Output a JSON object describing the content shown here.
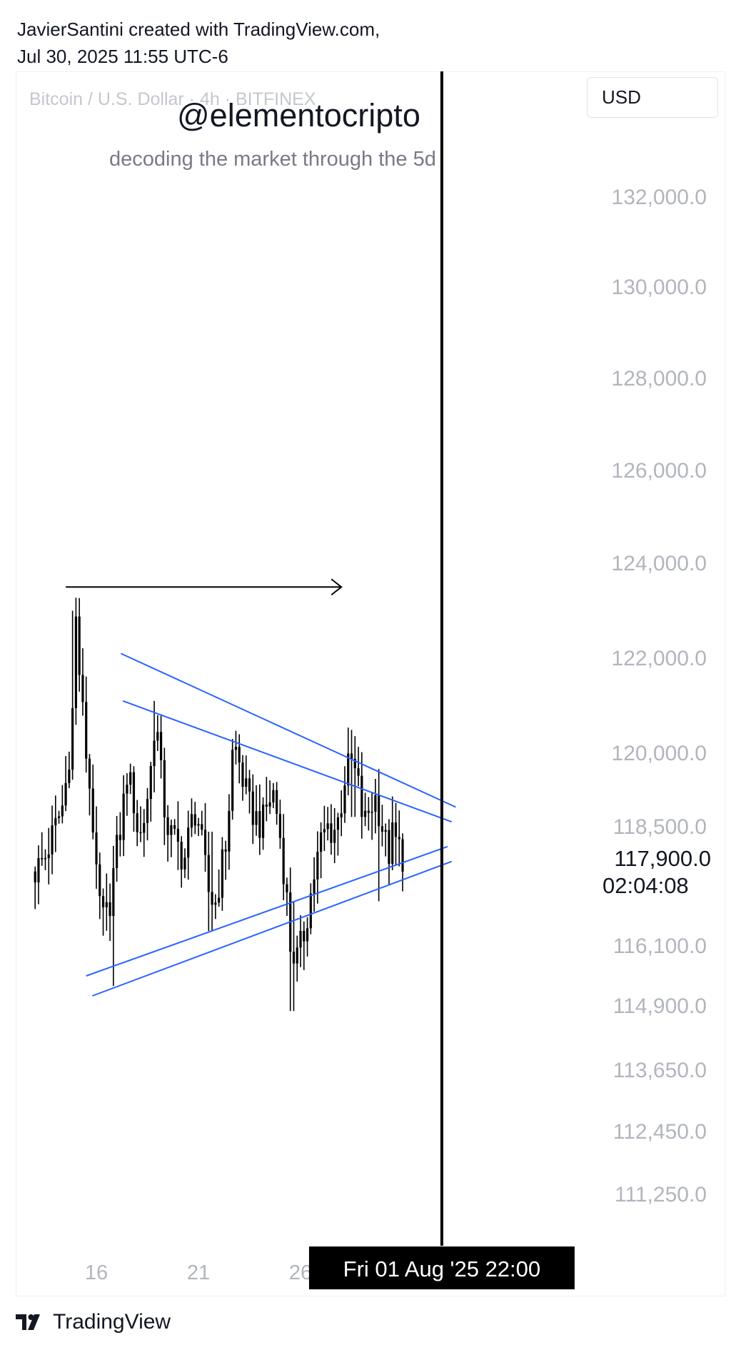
{
  "header": {
    "line1": "JavierSantini created with TradingView.com,",
    "line2": "Jul 30, 2025 11:55 UTC-6"
  },
  "watermark": {
    "symbol_line": "Bitcoin / U.S. Dollar · 4h · BITFINEX",
    "handle": "@elementocripto",
    "tagline": "decoding the market through the 5d"
  },
  "currency": "USD",
  "footer": {
    "brand": "TradingView",
    "logo_icon": "tradingview-logo-icon"
  },
  "colors": {
    "trendline": "#2962ff",
    "candle": "#000000",
    "axis_text": "#b2b5be",
    "crosshair_label_bg": "#000000"
  },
  "chart_data": {
    "type": "candlestick",
    "symbol": "Bitcoin / U.S. Dollar",
    "interval": "4h",
    "exchange": "BITFINEX",
    "y_axis": {
      "scale": "log",
      "ticks": [
        "132,000.0",
        "130,000.0",
        "128,000.0",
        "126,000.0",
        "124,000.0",
        "122,000.0",
        "120,000.0",
        "118,500.0",
        "116,100.0",
        "114,900.0",
        "113,650.0",
        "112,450.0",
        "111,250.0"
      ],
      "tick_values": [
        132000,
        130000,
        128000,
        126000,
        124000,
        122000,
        120000,
        118500,
        116100,
        114900,
        113650,
        112450,
        111250
      ]
    },
    "x_axis": {
      "ticks": [
        "16",
        "21",
        "26"
      ],
      "tick_days": [
        16,
        21,
        26
      ]
    },
    "last_price": {
      "label": "117,900.0",
      "value": 117900,
      "countdown": "02:04:08"
    },
    "crosshair": {
      "label": "Fri 01 Aug '25   22:00",
      "day": 32.92
    },
    "close_path": [
      [
        13.0,
        117600
      ],
      [
        13.5,
        117900
      ],
      [
        14.0,
        118500
      ],
      [
        14.4,
        119000
      ],
      [
        14.8,
        120500
      ],
      [
        15.0,
        122800
      ],
      [
        15.2,
        121500
      ],
      [
        15.5,
        120000
      ],
      [
        15.8,
        118800
      ],
      [
        16.0,
        117400
      ],
      [
        16.3,
        116600
      ],
      [
        16.6,
        116800
      ],
      [
        16.9,
        117800
      ],
      [
        17.2,
        118500
      ],
      [
        17.5,
        119600
      ],
      [
        17.8,
        119100
      ],
      [
        18.1,
        118200
      ],
      [
        18.4,
        118800
      ],
      [
        18.7,
        119800
      ],
      [
        18.9,
        120900
      ],
      [
        19.1,
        119800
      ],
      [
        19.4,
        118600
      ],
      [
        19.7,
        118300
      ],
      [
        20.0,
        118100
      ],
      [
        20.3,
        117800
      ],
      [
        20.6,
        118500
      ],
      [
        20.9,
        118900
      ],
      [
        21.2,
        118000
      ],
      [
        21.5,
        117200
      ],
      [
        21.8,
        116900
      ],
      [
        22.1,
        117600
      ],
      [
        22.4,
        118300
      ],
      [
        22.7,
        120200
      ],
      [
        22.9,
        120000
      ],
      [
        23.2,
        119400
      ],
      [
        23.5,
        118900
      ],
      [
        23.8,
        118700
      ],
      [
        24.1,
        118500
      ],
      [
        24.4,
        119000
      ],
      [
        24.7,
        119200
      ],
      [
        25.0,
        118300
      ],
      [
        25.3,
        117200
      ],
      [
        25.5,
        116100
      ],
      [
        25.8,
        115800
      ],
      [
        26.1,
        116200
      ],
      [
        26.4,
        116900
      ],
      [
        26.7,
        117600
      ],
      [
        27.0,
        118200
      ],
      [
        27.3,
        118500
      ],
      [
        27.6,
        118400
      ],
      [
        27.9,
        118700
      ],
      [
        28.2,
        119600
      ],
      [
        28.5,
        119800
      ],
      [
        28.8,
        119400
      ],
      [
        29.1,
        118500
      ],
      [
        29.4,
        118900
      ],
      [
        29.7,
        119100
      ],
      [
        30.0,
        118500
      ],
      [
        30.3,
        117900
      ],
      [
        30.5,
        118300
      ],
      [
        30.8,
        118100
      ],
      [
        31.0,
        117900
      ]
    ],
    "extremes": [
      {
        "day": 14.9,
        "high": 123000,
        "low": 120800
      },
      {
        "day": 16.8,
        "high": 117900,
        "low": 115300
      },
      {
        "day": 18.9,
        "high": 121100,
        "low": 119200
      },
      {
        "day": 21.6,
        "high": 118400,
        "low": 116400
      },
      {
        "day": 22.7,
        "high": 120300,
        "low": 118700
      },
      {
        "day": 25.6,
        "high": 117000,
        "low": 114800
      },
      {
        "day": 28.6,
        "high": 119900,
        "low": 118700
      },
      {
        "day": 29.9,
        "high": 118800,
        "low": 117000
      }
    ],
    "drawings": [
      {
        "type": "trendline",
        "points": [
          [
            17.2,
            122100
          ],
          [
            33.6,
            118900
          ]
        ]
      },
      {
        "type": "trendline",
        "points": [
          [
            17.3,
            121100
          ],
          [
            33.4,
            118600
          ]
        ]
      },
      {
        "type": "trendline",
        "points": [
          [
            15.5,
            115500
          ],
          [
            33.2,
            118100
          ]
        ]
      },
      {
        "type": "trendline",
        "points": [
          [
            15.8,
            115100
          ],
          [
            33.4,
            117800
          ]
        ]
      },
      {
        "type": "arrow",
        "points": [
          [
            14.5,
            123500
          ],
          [
            28.0,
            123500
          ]
        ]
      }
    ]
  }
}
